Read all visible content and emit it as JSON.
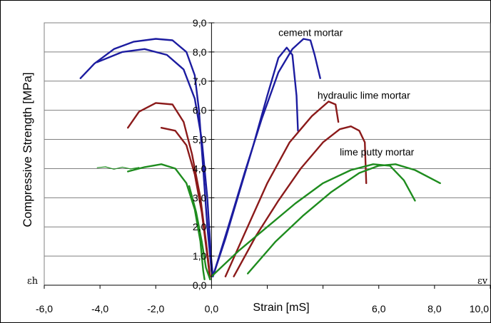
{
  "chart_data": {
    "type": "line",
    "title": "",
    "xlabel": "Strain [mS]",
    "ylabel": "Compressive Strength [MPa]",
    "xlim": [
      -6,
      10
    ],
    "ylim": [
      0,
      9
    ],
    "x_ticks": [
      "-6,0",
      "-4,0",
      "-2,0",
      "0,0",
      "2,0",
      "4,0",
      "6,0",
      "8,0",
      "10,0"
    ],
    "y_ticks": [
      "0,0",
      "1,0",
      "2,0",
      "3,0",
      "4,0",
      "5,0",
      "6,0",
      "7,0",
      "8,0",
      "9,0"
    ],
    "grid": "horizontal",
    "corner_labels": {
      "left": "εh",
      "right": "εv"
    },
    "annotations": [
      {
        "text": "cement mortar",
        "x": 2.4,
        "y": 8.55
      },
      {
        "text": "hydraulic lime mortar",
        "x": 3.8,
        "y": 6.4
      },
      {
        "text": "lime putty mortar",
        "x": 4.6,
        "y": 4.45
      }
    ],
    "colors": {
      "cement": "#1c1ca0",
      "hydraulic": "#8b1a1a",
      "putty": "#1e8c1e"
    },
    "series": [
      {
        "group": "cement",
        "points": [
          [
            -4.7,
            7.1
          ],
          [
            -4.2,
            7.6
          ],
          [
            -3.5,
            8.1
          ],
          [
            -2.8,
            8.35
          ],
          [
            -2.0,
            8.45
          ],
          [
            -1.4,
            8.4
          ],
          [
            -0.9,
            8.0
          ],
          [
            -0.6,
            7.2
          ],
          [
            -0.45,
            6.0
          ],
          [
            -0.3,
            4.0
          ],
          [
            -0.15,
            2.0
          ],
          [
            0.0,
            0.5
          ],
          [
            0.05,
            0.3
          ]
        ]
      },
      {
        "group": "cement",
        "points": [
          [
            -4.1,
            7.65
          ],
          [
            -3.2,
            8.0
          ],
          [
            -2.4,
            8.1
          ],
          [
            -1.6,
            7.9
          ],
          [
            -1.0,
            7.4
          ],
          [
            -0.6,
            6.4
          ],
          [
            -0.35,
            5.0
          ],
          [
            -0.15,
            3.0
          ],
          [
            -0.02,
            1.0
          ],
          [
            0.05,
            0.3
          ]
        ]
      },
      {
        "group": "cement",
        "points": [
          [
            0.05,
            0.3
          ],
          [
            0.5,
            1.6
          ],
          [
            1.0,
            3.2
          ],
          [
            1.5,
            4.8
          ],
          [
            2.0,
            6.5
          ],
          [
            2.4,
            7.8
          ],
          [
            2.7,
            8.15
          ],
          [
            2.9,
            7.9
          ],
          [
            3.05,
            6.5
          ],
          [
            3.1,
            5.3
          ]
        ]
      },
      {
        "group": "cement",
        "points": [
          [
            0.05,
            0.3
          ],
          [
            0.6,
            2.0
          ],
          [
            1.2,
            3.9
          ],
          [
            1.8,
            5.7
          ],
          [
            2.4,
            7.3
          ],
          [
            2.9,
            8.1
          ],
          [
            3.3,
            8.45
          ],
          [
            3.55,
            8.4
          ],
          [
            3.7,
            7.9
          ],
          [
            3.9,
            7.1
          ]
        ]
      },
      {
        "group": "hydraulic",
        "points": [
          [
            -3.0,
            5.4
          ],
          [
            -2.6,
            5.95
          ],
          [
            -2.0,
            6.25
          ],
          [
            -1.4,
            6.2
          ],
          [
            -1.0,
            5.6
          ],
          [
            -0.7,
            4.5
          ],
          [
            -0.4,
            3.0
          ],
          [
            -0.2,
            1.5
          ],
          [
            -0.05,
            0.3
          ]
        ]
      },
      {
        "group": "hydraulic",
        "points": [
          [
            -1.8,
            5.4
          ],
          [
            -1.3,
            5.3
          ],
          [
            -0.9,
            4.8
          ],
          [
            -0.6,
            3.8
          ],
          [
            -0.35,
            2.5
          ],
          [
            -0.15,
            1.0
          ],
          [
            -0.05,
            0.2
          ]
        ]
      },
      {
        "group": "hydraulic",
        "points": [
          [
            0.5,
            0.3
          ],
          [
            1.2,
            1.8
          ],
          [
            2.0,
            3.5
          ],
          [
            2.8,
            4.9
          ],
          [
            3.6,
            5.8
          ],
          [
            4.2,
            6.3
          ],
          [
            4.45,
            6.2
          ],
          [
            4.55,
            5.6
          ]
        ]
      },
      {
        "group": "hydraulic",
        "points": [
          [
            0.8,
            0.3
          ],
          [
            1.6,
            1.7
          ],
          [
            2.4,
            2.9
          ],
          [
            3.2,
            4.0
          ],
          [
            4.0,
            4.9
          ],
          [
            4.6,
            5.35
          ],
          [
            5.0,
            5.45
          ],
          [
            5.3,
            5.3
          ],
          [
            5.5,
            4.9
          ],
          [
            5.55,
            3.5
          ]
        ]
      },
      {
        "group": "putty",
        "points": [
          [
            -3.0,
            3.9
          ],
          [
            -2.4,
            4.05
          ],
          [
            -1.8,
            4.15
          ],
          [
            -1.3,
            4.0
          ],
          [
            -0.9,
            3.5
          ],
          [
            -0.6,
            2.6
          ],
          [
            -0.4,
            1.5
          ],
          [
            -0.3,
            0.5
          ],
          [
            -0.25,
            0.2
          ]
        ]
      },
      {
        "group": "putty",
        "points": [
          [
            -4.1,
            4.03
          ],
          [
            -3.8,
            4.06
          ],
          [
            -3.5,
            3.98
          ],
          [
            -3.2,
            4.05
          ],
          [
            -2.9,
            3.99
          ],
          [
            -2.6,
            4.04
          ]
        ]
      },
      {
        "group": "putty",
        "points": [
          [
            -0.8,
            3.4
          ],
          [
            -0.55,
            2.5
          ],
          [
            -0.35,
            1.5
          ],
          [
            -0.2,
            0.6
          ],
          [
            -0.05,
            0.2
          ]
        ]
      },
      {
        "group": "putty",
        "points": [
          [
            0.0,
            0.3
          ],
          [
            1.0,
            1.2
          ],
          [
            2.0,
            2.0
          ],
          [
            3.0,
            2.8
          ],
          [
            4.0,
            3.5
          ],
          [
            5.0,
            3.95
          ],
          [
            5.8,
            4.15
          ],
          [
            6.4,
            4.1
          ],
          [
            6.9,
            3.6
          ],
          [
            7.3,
            2.9
          ]
        ]
      },
      {
        "group": "putty",
        "points": [
          [
            1.3,
            0.4
          ],
          [
            2.3,
            1.5
          ],
          [
            3.3,
            2.4
          ],
          [
            4.3,
            3.2
          ],
          [
            5.3,
            3.85
          ],
          [
            6.0,
            4.1
          ],
          [
            6.6,
            4.15
          ],
          [
            7.3,
            3.95
          ],
          [
            8.0,
            3.6
          ],
          [
            8.2,
            3.5
          ]
        ]
      }
    ]
  }
}
